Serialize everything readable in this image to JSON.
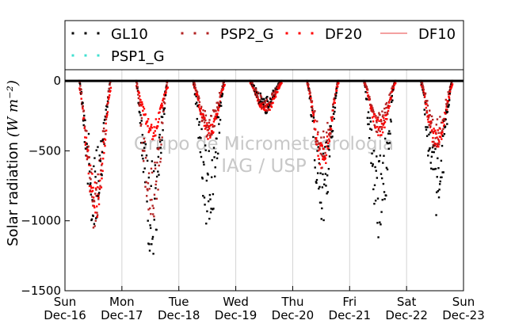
{
  "chart_data": {
    "type": "scatter",
    "title": "",
    "xlabel": "",
    "ylabel": "Solar radiation",
    "ylabel_unit": "(W m⁻²)",
    "ylim": [
      -1500,
      80
    ],
    "yticks": [
      0,
      -500,
      -1000,
      -1500
    ],
    "ytick_labels": [
      "0",
      "−500",
      "−1000",
      "−1500"
    ],
    "xlim": [
      0,
      7
    ],
    "xticks": [
      {
        "day": "Sun",
        "date": "Dec-16"
      },
      {
        "day": "Mon",
        "date": "Dec-17"
      },
      {
        "day": "Tue",
        "date": "Dec-18"
      },
      {
        "day": "Wed",
        "date": "Dec-19"
      },
      {
        "day": "Thu",
        "date": "Dec-20"
      },
      {
        "day": "Fri",
        "date": "Dec-21"
      },
      {
        "day": "Sat",
        "date": "Dec-22"
      },
      {
        "day": "Sun",
        "date": "Dec-23"
      }
    ],
    "grid_x": true,
    "zero_line": true,
    "legend": {
      "placement": "top",
      "columns": 4
    },
    "watermark": [
      "Grupo de Micrometeorologia",
      "IAG / USP"
    ],
    "series": [
      {
        "name": "GL10",
        "style": "dots",
        "color": "#000000"
      },
      {
        "name": "PSP2_G",
        "style": "dots",
        "color": "#b22222"
      },
      {
        "name": "DF20",
        "style": "dots",
        "color": "#ff0000"
      },
      {
        "name": "DF10",
        "style": "line",
        "color": "#f08080"
      },
      {
        "name": "PSP1_G",
        "style": "dots",
        "color": "#40e0d0"
      }
    ],
    "days": [
      {
        "gl10_min": -1110,
        "psp2_min": -1070,
        "df20_min": -1000,
        "df20_base": -60
      },
      {
        "gl10_min": -1270,
        "psp2_min": -1100,
        "df20_min": -420,
        "df20_base": -50
      },
      {
        "gl10_min": -1080,
        "psp2_min": -430,
        "df20_min": -430,
        "df20_base": -30
      },
      {
        "gl10_min": -240,
        "psp2_min": -230,
        "df20_min": -240,
        "df20_base": -20
      },
      {
        "gl10_min": -1020,
        "psp2_min": -640,
        "df20_min": -640,
        "df20_base": -20
      },
      {
        "gl10_min": -1160,
        "psp2_min": -400,
        "df20_min": -400,
        "df20_base": -20
      },
      {
        "gl10_min": -960,
        "psp2_min": -500,
        "df20_min": -500,
        "df20_base": -30
      }
    ]
  }
}
